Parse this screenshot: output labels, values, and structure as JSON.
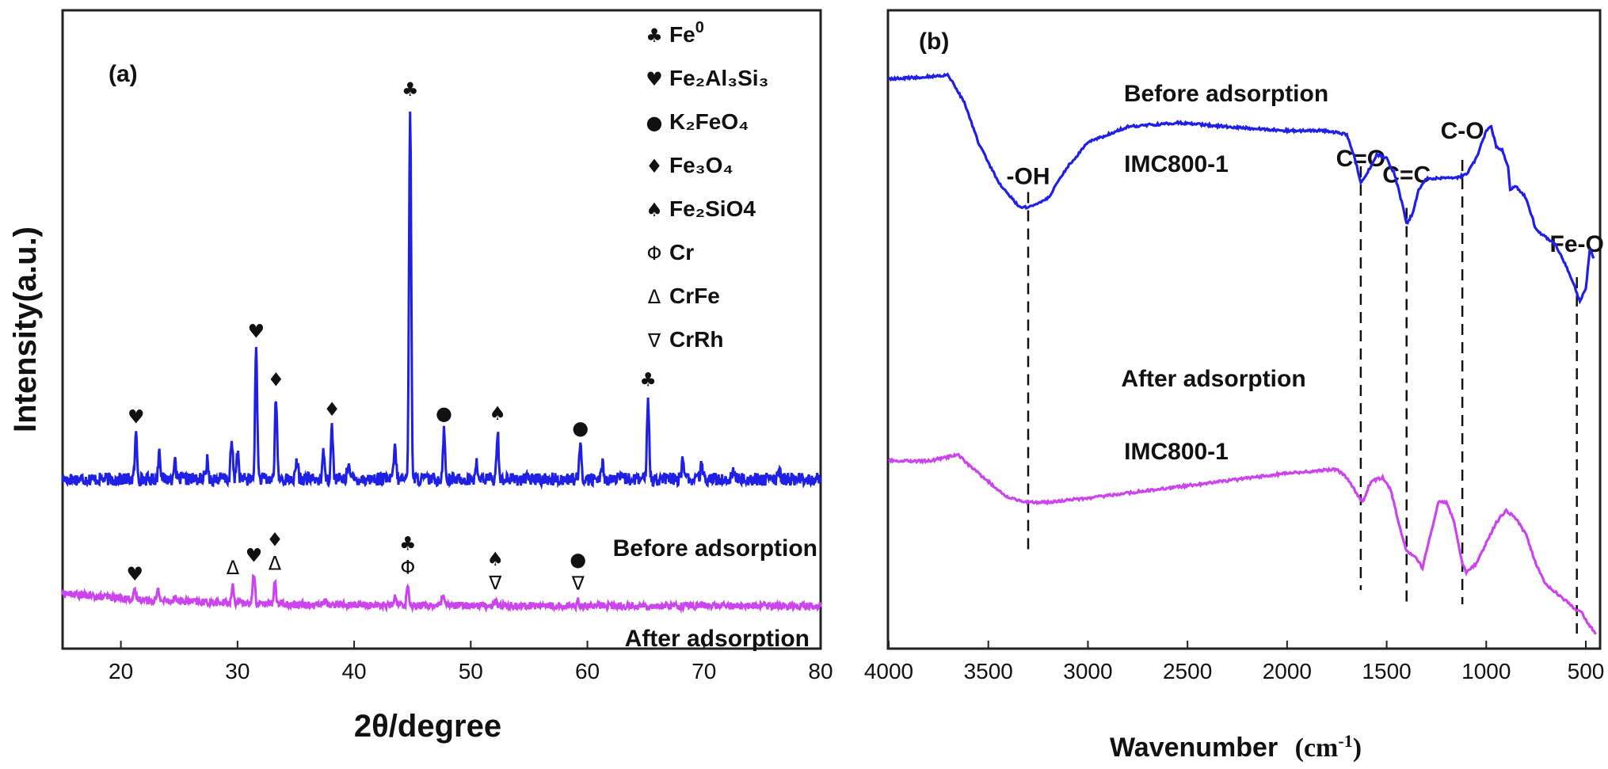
{
  "chart_data": [
    {
      "panel": "(a)",
      "type": "line",
      "xlabel": "2θ/degree",
      "ylabel": "Intensity(a.u.)",
      "xlim": [
        15,
        80
      ],
      "xticks": [
        "20",
        "30",
        "40",
        "50",
        "60",
        "70",
        "80"
      ],
      "legend": {
        "placement": "top-right",
        "entries": [
          {
            "symbol": "♣",
            "text": "Fe",
            "sup": "0"
          },
          {
            "symbol": "♥",
            "text": "Fe₂Al₃Si₃"
          },
          {
            "symbol": "●",
            "text": "K₂FeO₄"
          },
          {
            "symbol": "♦",
            "text": "Fe₃O₄"
          },
          {
            "symbol": "♠",
            "text": "Fe₂SiO4"
          },
          {
            "symbol": "Φ",
            "text": "Cr"
          },
          {
            "symbol": "Δ",
            "text": "CrFe"
          },
          {
            "symbol": "∇",
            "text": "CrRh"
          }
        ]
      },
      "series": [
        {
          "name": "Before adsorption",
          "color": "#1f1fe6",
          "baseline": 0.3,
          "peaks": [
            [
              21.3,
              0.12
            ],
            [
              23.3,
              0.08
            ],
            [
              24.6,
              0.05
            ],
            [
              27.4,
              0.05
            ],
            [
              29.5,
              0.1
            ],
            [
              30.0,
              0.08
            ],
            [
              31.6,
              0.35
            ],
            [
              33.3,
              0.22
            ],
            [
              35.1,
              0.05
            ],
            [
              37.4,
              0.08
            ],
            [
              38.1,
              0.14
            ],
            [
              39.5,
              0.05
            ],
            [
              43.5,
              0.09
            ],
            [
              44.8,
              1.0
            ],
            [
              47.7,
              0.13
            ],
            [
              50.5,
              0.04
            ],
            [
              52.3,
              0.13
            ],
            [
              59.4,
              0.09
            ],
            [
              61.3,
              0.04
            ],
            [
              65.2,
              0.22
            ],
            [
              68.2,
              0.06
            ],
            [
              69.8,
              0.04
            ],
            [
              72.5,
              0.03
            ],
            [
              76.5,
              0.02
            ]
          ],
          "annotations": [
            {
              "x": 21.3,
              "symbols": [
                "♥"
              ]
            },
            {
              "x": 31.6,
              "symbols": [
                "♥"
              ]
            },
            {
              "x": 33.3,
              "symbols": [
                "♦"
              ]
            },
            {
              "x": 38.1,
              "symbols": [
                "♦"
              ]
            },
            {
              "x": 44.8,
              "symbols": [
                "♣"
              ]
            },
            {
              "x": 47.7,
              "symbols": [
                "●"
              ]
            },
            {
              "x": 52.3,
              "symbols": [
                "♠"
              ]
            },
            {
              "x": 59.4,
              "symbols": [
                "●"
              ]
            },
            {
              "x": 65.2,
              "symbols": [
                "♣"
              ]
            }
          ]
        },
        {
          "name": "After adsorption",
          "color": "#cc44ee",
          "baseline": 0.05,
          "peaks": [
            [
              21.2,
              0.03
            ],
            [
              23.2,
              0.04
            ],
            [
              24.6,
              0.02
            ],
            [
              29.6,
              0.07
            ],
            [
              31.4,
              0.12
            ],
            [
              33.2,
              0.09
            ],
            [
              37.5,
              0.02
            ],
            [
              43.5,
              0.03
            ],
            [
              44.6,
              0.08
            ],
            [
              47.6,
              0.04
            ],
            [
              52.1,
              0.02
            ],
            [
              59.2,
              0.02
            ]
          ],
          "annotations": [
            {
              "x": 21.2,
              "symbols": [
                "♥"
              ]
            },
            {
              "x": 29.6,
              "symbols": [
                "Δ"
              ]
            },
            {
              "x": 31.4,
              "symbols": [
                "♥"
              ]
            },
            {
              "x": 33.2,
              "symbols": [
                "♦",
                "Δ"
              ]
            },
            {
              "x": 44.6,
              "symbols": [
                "♣",
                "Φ"
              ]
            },
            {
              "x": 52.1,
              "symbols": [
                "♠",
                "∇"
              ]
            },
            {
              "x": 59.2,
              "symbols": [
                "●",
                "∇"
              ]
            }
          ]
        }
      ]
    },
    {
      "panel": "(b)",
      "type": "line",
      "xlabel": "Wavenumber",
      "xlabel_unit": "(cm",
      "xlabel_unit_sup": "-1",
      "xlabel_unit_close": ")",
      "xlim": [
        4000,
        450
      ],
      "xticks": [
        "4000",
        "3500",
        "3000",
        "2500",
        "2000",
        "1500",
        "1000",
        "500"
      ],
      "series": [
        {
          "name": "Before adsorption",
          "label": "IMC800-1",
          "color": "#1f1fe6",
          "points": [
            [
              4000,
              0.9
            ],
            [
              3700,
              0.91
            ],
            [
              3620,
              0.84
            ],
            [
              3550,
              0.74
            ],
            [
              3450,
              0.64
            ],
            [
              3350,
              0.58
            ],
            [
              3300,
              0.575
            ],
            [
              3200,
              0.6
            ],
            [
              3100,
              0.68
            ],
            [
              3000,
              0.74
            ],
            [
              2800,
              0.78
            ],
            [
              2550,
              0.79
            ],
            [
              2300,
              0.78
            ],
            [
              2000,
              0.77
            ],
            [
              1800,
              0.77
            ],
            [
              1700,
              0.76
            ],
            [
              1660,
              0.7
            ],
            [
              1630,
              0.64
            ],
            [
              1600,
              0.66
            ],
            [
              1550,
              0.71
            ],
            [
              1500,
              0.7
            ],
            [
              1460,
              0.66
            ],
            [
              1420,
              0.58
            ],
            [
              1400,
              0.535
            ],
            [
              1370,
              0.56
            ],
            [
              1340,
              0.62
            ],
            [
              1300,
              0.65
            ],
            [
              1250,
              0.65
            ],
            [
              1150,
              0.65
            ],
            [
              1100,
              0.66
            ],
            [
              1050,
              0.7
            ],
            [
              1000,
              0.77
            ],
            [
              975,
              0.78
            ],
            [
              950,
              0.73
            ],
            [
              920,
              0.72
            ],
            [
              890,
              0.68
            ],
            [
              880,
              0.62
            ],
            [
              850,
              0.63
            ],
            [
              800,
              0.6
            ],
            [
              750,
              0.52
            ],
            [
              700,
              0.5
            ],
            [
              650,
              0.48
            ],
            [
              600,
              0.43
            ],
            [
              560,
              0.38
            ],
            [
              530,
              0.34
            ],
            [
              500,
              0.37
            ],
            [
              480,
              0.47
            ],
            [
              460,
              0.45
            ]
          ],
          "annotations": [
            {
              "label": "-OH",
              "x": 3300
            },
            {
              "label": "C=O",
              "x": 1630
            },
            {
              "label": "C=C",
              "x": 1400
            },
            {
              "label": "C-O",
              "x": 1120
            },
            {
              "label": "Fe-O",
              "x": 545
            }
          ]
        },
        {
          "name": "After adsorption",
          "label": "IMC800-1",
          "color": "#cc44ee",
          "points": [
            [
              4000,
              0.4
            ],
            [
              3800,
              0.4
            ],
            [
              3650,
              0.415
            ],
            [
              3600,
              0.39
            ],
            [
              3500,
              0.35
            ],
            [
              3400,
              0.31
            ],
            [
              3300,
              0.3
            ],
            [
              3200,
              0.3
            ],
            [
              3000,
              0.31
            ],
            [
              2500,
              0.34
            ],
            [
              2000,
              0.37
            ],
            [
              1750,
              0.38
            ],
            [
              1700,
              0.36
            ],
            [
              1650,
              0.32
            ],
            [
              1620,
              0.3
            ],
            [
              1580,
              0.35
            ],
            [
              1520,
              0.36
            ],
            [
              1480,
              0.33
            ],
            [
              1430,
              0.23
            ],
            [
              1400,
              0.18
            ],
            [
              1360,
              0.17
            ],
            [
              1320,
              0.14
            ],
            [
              1280,
              0.22
            ],
            [
              1240,
              0.3
            ],
            [
              1200,
              0.3
            ],
            [
              1160,
              0.25
            ],
            [
              1120,
              0.15
            ],
            [
              1100,
              0.13
            ],
            [
              1050,
              0.15
            ],
            [
              1000,
              0.2
            ],
            [
              950,
              0.25
            ],
            [
              900,
              0.28
            ],
            [
              850,
              0.26
            ],
            [
              800,
              0.22
            ],
            [
              750,
              0.15
            ],
            [
              700,
              0.1
            ],
            [
              650,
              0.08
            ],
            [
              600,
              0.06
            ],
            [
              550,
              0.04
            ],
            [
              520,
              0.03
            ],
            [
              480,
              0.0
            ],
            [
              450,
              -0.02
            ]
          ]
        }
      ]
    }
  ]
}
